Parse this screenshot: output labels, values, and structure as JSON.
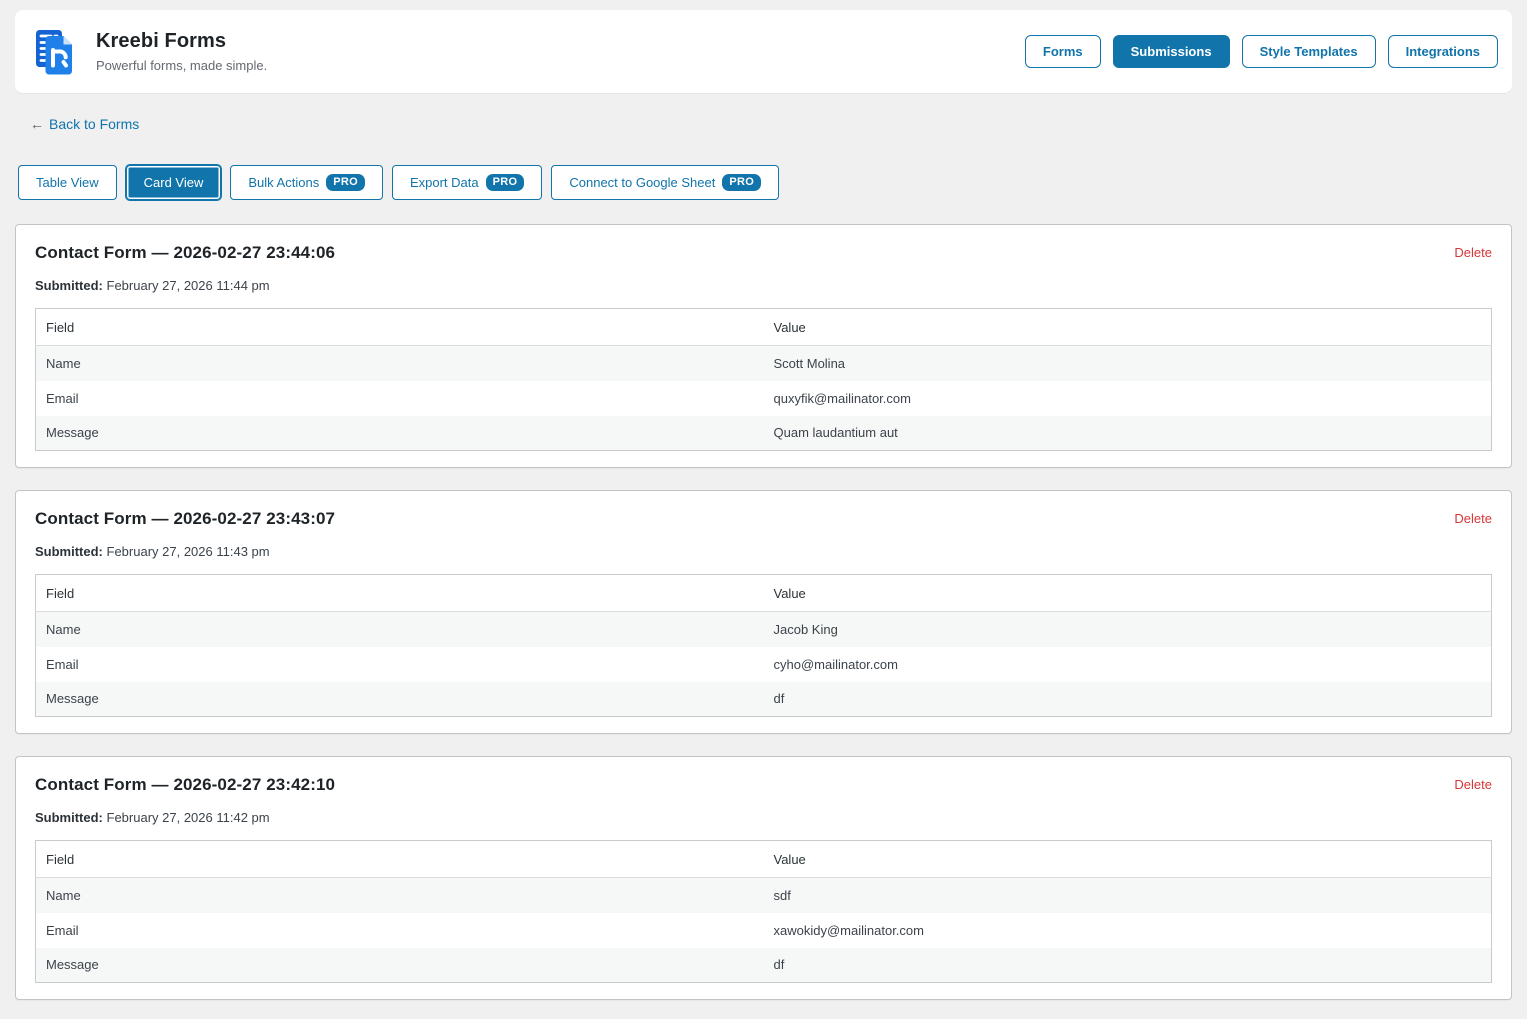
{
  "header": {
    "title": "Kreebi Forms",
    "subtitle": "Powerful forms, made simple.",
    "nav": [
      {
        "label": "Forms",
        "active": false
      },
      {
        "label": "Submissions",
        "active": true
      },
      {
        "label": "Style Templates",
        "active": false
      },
      {
        "label": "Integrations",
        "active": false
      }
    ]
  },
  "back": {
    "arrow": "←",
    "label": "Back to Forms"
  },
  "toolbar": {
    "buttons": [
      {
        "label": "Table View",
        "active": false,
        "pro": false
      },
      {
        "label": "Card View",
        "active": true,
        "pro": false
      },
      {
        "label": "Bulk Actions",
        "active": false,
        "pro": true
      },
      {
        "label": "Export Data",
        "active": false,
        "pro": true
      },
      {
        "label": "Connect to Google Sheet",
        "active": false,
        "pro": true
      }
    ]
  },
  "labels": {
    "pro": "PRO",
    "delete": "Delete",
    "submitted": "Submitted:",
    "field": "Field",
    "value": "Value"
  },
  "cards": [
    {
      "title": "Contact Form — 2026-02-27 23:44:06",
      "submitted": "February 27, 2026 11:44 pm",
      "rows": [
        [
          "Name",
          "Scott Molina"
        ],
        [
          "Email",
          "quxyfik@mailinator.com"
        ],
        [
          "Message",
          "Quam laudantium aut"
        ]
      ]
    },
    {
      "title": "Contact Form — 2026-02-27 23:43:07",
      "submitted": "February 27, 2026 11:43 pm",
      "rows": [
        [
          "Name",
          "Jacob King"
        ],
        [
          "Email",
          "cyho@mailinator.com"
        ],
        [
          "Message",
          "df"
        ]
      ]
    },
    {
      "title": "Contact Form — 2026-02-27 23:42:10",
      "submitted": "February 27, 2026 11:42 pm",
      "rows": [
        [
          "Name",
          "sdf"
        ],
        [
          "Email",
          "xawokidy@mailinator.com"
        ],
        [
          "Message",
          "df"
        ]
      ]
    }
  ],
  "colors": {
    "accent_blue": "#1174ab",
    "delete_red": "#d63638",
    "page_background": "#f0f0f1",
    "card_border": "#c3c4c7",
    "row_alt_background": "#f6f7f7",
    "logo_back_blue": "#1563d2",
    "logo_front_blue": "#1e80e8"
  }
}
